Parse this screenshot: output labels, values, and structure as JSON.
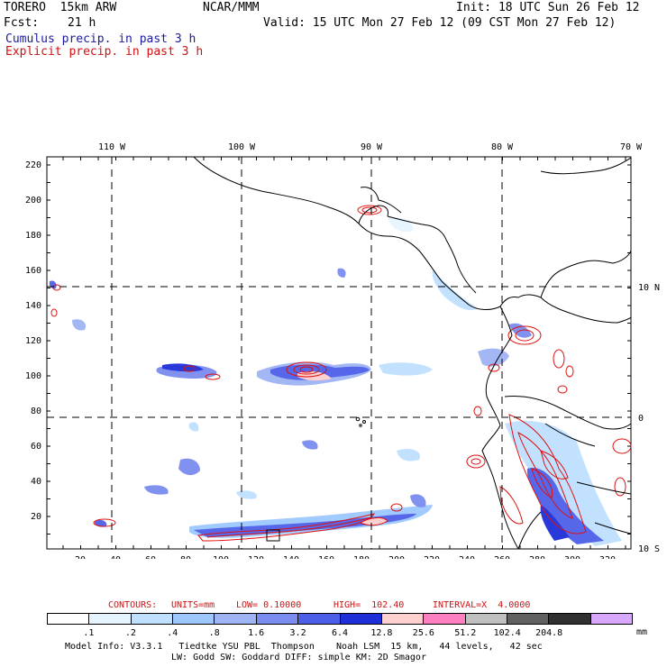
{
  "header": {
    "model": "TORERO  15km ARW",
    "org": "NCAR/MMM",
    "init": "Init: 18 UTC Sun 26 Feb 12",
    "fcst_label": "Fcst:",
    "fcst_hours": "21 h",
    "valid": "Valid: 15 UTC Mon 27 Feb 12 (09 CST Mon 27 Feb 12)",
    "field_1": "Cumulus precip. in past 3 h",
    "field_2": "Explicit precip. in past 3 h"
  },
  "map": {
    "top_labels": [
      "110 W",
      "100 W",
      "90 W",
      "80 W",
      "70 W"
    ],
    "right_labels": [
      "10 N",
      "0",
      "10 S"
    ],
    "y_ticks": [
      "220",
      "200",
      "180",
      "160",
      "140",
      "120",
      "100",
      "80",
      "60",
      "40",
      "20"
    ],
    "x_ticks": [
      "20",
      "40",
      "60",
      "80",
      "100",
      "120",
      "140",
      "160",
      "180",
      "200",
      "220",
      "240",
      "260",
      "280",
      "300",
      "320"
    ]
  },
  "contours": {
    "label": "CONTOURS:",
    "units": "UNITS=mm",
    "low": "LOW= 0.10000",
    "high": "HIGH=  102.40",
    "interval": "INTERVAL=X  4.0000"
  },
  "legend": {
    "colors": [
      "#ffffff",
      "#e6f4ff",
      "#bfe0ff",
      "#9cc8ff",
      "#9fb4f5",
      "#7b8cf0",
      "#4d5fe8",
      "#1e2fd8",
      "#ffd0d0",
      "#ff80c0",
      "#c0c0c0",
      "#606060",
      "#303030",
      "#d8a8ff"
    ],
    "labels": [
      ".1",
      ".2",
      ".4",
      ".8",
      "1.6",
      "3.2",
      "6.4",
      "12.8",
      "25.6",
      "51.2",
      "102.4",
      "204.8"
    ],
    "unit": "mm"
  },
  "footer": {
    "line1": "Model Info: V3.3.1   Tiedtke YSU PBL  Thompson    Noah LSM  15 km,   44 levels,   42 sec",
    "line2": "LW: Godd SW: Goddard DIFF: simple KM: 2D Smagor"
  }
}
